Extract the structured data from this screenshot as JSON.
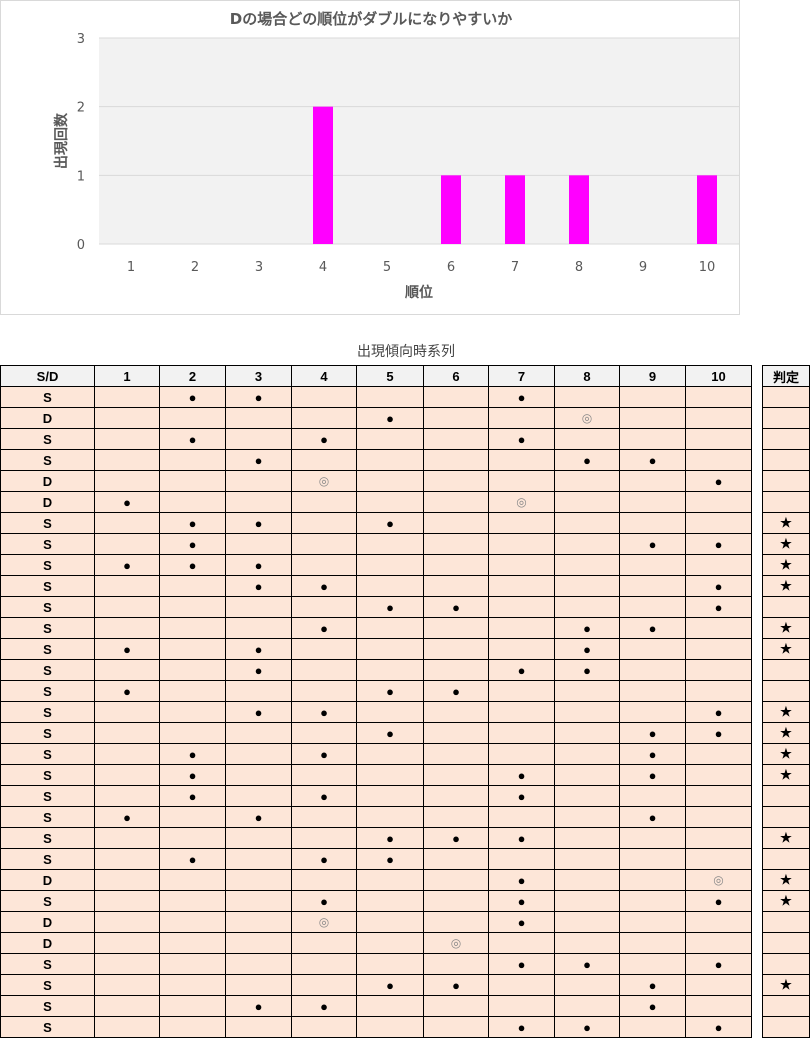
{
  "chart_data": {
    "type": "bar",
    "title": "Dの場合どの順位がダブルになりやすいか",
    "xlabel": "順位",
    "ylabel": "出現回数",
    "categories": [
      "1",
      "2",
      "3",
      "4",
      "5",
      "6",
      "7",
      "8",
      "9",
      "10"
    ],
    "values": [
      0,
      0,
      0,
      2,
      0,
      1,
      1,
      1,
      0,
      1
    ],
    "ylim": [
      0,
      3
    ],
    "yticks": [
      "0",
      "1",
      "2",
      "3"
    ],
    "grid": true,
    "bar_color": "#ff00ff",
    "plot_bg": "#f2f2f2"
  },
  "table": {
    "title": "出現傾向時系列",
    "headers": [
      "S/D",
      "1",
      "2",
      "3",
      "4",
      "5",
      "6",
      "7",
      "8",
      "9",
      "10"
    ],
    "judge_header": "判定",
    "rows": [
      {
        "t": "S",
        "m": [
          "",
          "●",
          "●",
          "",
          "",
          "",
          "●",
          "",
          "",
          ""
        ],
        "j": ""
      },
      {
        "t": "D",
        "m": [
          "",
          "",
          "",
          "",
          "●",
          "",
          "",
          "◎",
          "",
          ""
        ],
        "j": ""
      },
      {
        "t": "S",
        "m": [
          "",
          "●",
          "",
          "●",
          "",
          "",
          "●",
          "",
          "",
          ""
        ],
        "j": ""
      },
      {
        "t": "S",
        "m": [
          "",
          "",
          "●",
          "",
          "",
          "",
          "",
          "●",
          "●",
          ""
        ],
        "j": ""
      },
      {
        "t": "D",
        "m": [
          "",
          "",
          "",
          "◎",
          "",
          "",
          "",
          "",
          "",
          "●"
        ],
        "j": ""
      },
      {
        "t": "D",
        "m": [
          "●",
          "",
          "",
          "",
          "",
          "",
          "◎",
          "",
          "",
          ""
        ],
        "j": ""
      },
      {
        "t": "S",
        "m": [
          "",
          "●",
          "●",
          "",
          "●",
          "",
          "",
          "",
          "",
          ""
        ],
        "j": "★"
      },
      {
        "t": "S",
        "m": [
          "",
          "●",
          "",
          "",
          "",
          "",
          "",
          "",
          "●",
          "●"
        ],
        "j": "★"
      },
      {
        "t": "S",
        "m": [
          "●",
          "●",
          "●",
          "",
          "",
          "",
          "",
          "",
          "",
          ""
        ],
        "j": "★"
      },
      {
        "t": "S",
        "m": [
          "",
          "",
          "●",
          "●",
          "",
          "",
          "",
          "",
          "",
          "●"
        ],
        "j": "★"
      },
      {
        "t": "S",
        "m": [
          "",
          "",
          "",
          "",
          "●",
          "●",
          "",
          "",
          "",
          "●"
        ],
        "j": ""
      },
      {
        "t": "S",
        "m": [
          "",
          "",
          "",
          "●",
          "",
          "",
          "",
          "●",
          "●",
          ""
        ],
        "j": "★"
      },
      {
        "t": "S",
        "m": [
          "●",
          "",
          "●",
          "",
          "",
          "",
          "",
          "●",
          "",
          ""
        ],
        "j": "★"
      },
      {
        "t": "S",
        "m": [
          "",
          "",
          "●",
          "",
          "",
          "",
          "●",
          "●",
          "",
          ""
        ],
        "j": ""
      },
      {
        "t": "S",
        "m": [
          "●",
          "",
          "",
          "",
          "●",
          "●",
          "",
          "",
          "",
          ""
        ],
        "j": ""
      },
      {
        "t": "S",
        "m": [
          "",
          "",
          "●",
          "●",
          "",
          "",
          "",
          "",
          "",
          "●"
        ],
        "j": "★"
      },
      {
        "t": "S",
        "m": [
          "",
          "",
          "",
          "",
          "●",
          "",
          "",
          "",
          "●",
          "●"
        ],
        "j": "★"
      },
      {
        "t": "S",
        "m": [
          "",
          "●",
          "",
          "●",
          "",
          "",
          "",
          "",
          "●",
          ""
        ],
        "j": "★"
      },
      {
        "t": "S",
        "m": [
          "",
          "●",
          "",
          "",
          "",
          "",
          "●",
          "",
          "●",
          ""
        ],
        "j": "★"
      },
      {
        "t": "S",
        "m": [
          "",
          "●",
          "",
          "●",
          "",
          "",
          "●",
          "",
          "",
          ""
        ],
        "j": ""
      },
      {
        "t": "S",
        "m": [
          "●",
          "",
          "●",
          "",
          "",
          "",
          "",
          "",
          "●",
          ""
        ],
        "j": ""
      },
      {
        "t": "S",
        "m": [
          "",
          "",
          "",
          "",
          "●",
          "●",
          "●",
          "",
          "",
          ""
        ],
        "j": "★"
      },
      {
        "t": "S",
        "m": [
          "",
          "●",
          "",
          "●",
          "●",
          "",
          "",
          "",
          "",
          ""
        ],
        "j": ""
      },
      {
        "t": "D",
        "m": [
          "",
          "",
          "",
          "",
          "",
          "",
          "●",
          "",
          "",
          "◎"
        ],
        "j": "★"
      },
      {
        "t": "S",
        "m": [
          "",
          "",
          "",
          "●",
          "",
          "",
          "●",
          "",
          "",
          "●"
        ],
        "j": "★"
      },
      {
        "t": "D",
        "m": [
          "",
          "",
          "",
          "◎",
          "",
          "",
          "●",
          "",
          "",
          ""
        ],
        "j": ""
      },
      {
        "t": "D",
        "m": [
          "",
          "",
          "",
          "",
          "",
          "◎",
          "",
          "",
          "",
          ""
        ],
        "j": ""
      },
      {
        "t": "S",
        "m": [
          "",
          "",
          "",
          "",
          "",
          "",
          "●",
          "●",
          "",
          "●"
        ],
        "j": ""
      },
      {
        "t": "S",
        "m": [
          "",
          "",
          "",
          "",
          "●",
          "●",
          "",
          "",
          "●",
          ""
        ],
        "j": "★"
      },
      {
        "t": "S",
        "m": [
          "",
          "",
          "●",
          "●",
          "",
          "",
          "",
          "",
          "●",
          ""
        ],
        "j": ""
      },
      {
        "t": "S",
        "m": [
          "",
          "",
          "",
          "",
          "",
          "",
          "●",
          "●",
          "",
          "●"
        ],
        "j": ""
      }
    ]
  }
}
